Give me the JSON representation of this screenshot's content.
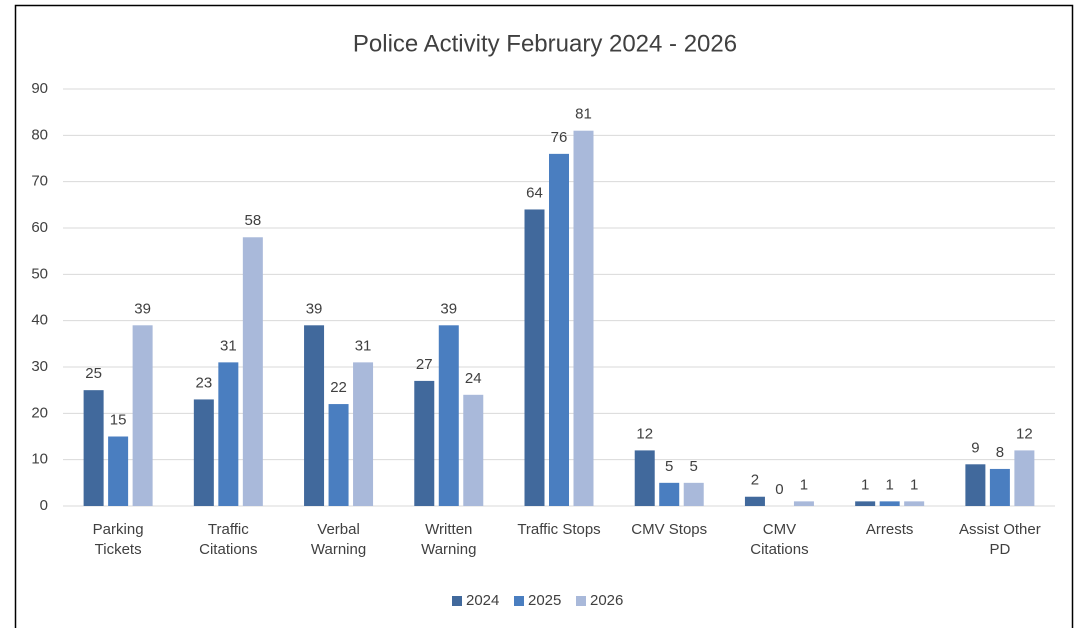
{
  "chart_data": {
    "type": "bar",
    "title": "Police Activity February 2024 - 2026",
    "categories": [
      "Parking Tickets",
      "Traffic Citations",
      "Verbal Warning",
      "Written Warning",
      "Traffic Stops",
      "CMV Stops",
      "CMV Citations",
      "Arrests",
      "Assist Other PD"
    ],
    "series": [
      {
        "name": "2024",
        "color": "#41699c",
        "values": [
          25,
          23,
          39,
          27,
          64,
          12,
          2,
          1,
          9
        ]
      },
      {
        "name": "2025",
        "color": "#4a7ec0",
        "values": [
          15,
          31,
          22,
          39,
          76,
          5,
          0,
          1,
          8
        ]
      },
      {
        "name": "2026",
        "color": "#a9b9da",
        "values": [
          39,
          58,
          31,
          24,
          81,
          5,
          1,
          1,
          12
        ]
      }
    ],
    "ylim": [
      0,
      90
    ],
    "yticks": [
      0,
      10,
      20,
      30,
      40,
      50,
      60,
      70,
      80,
      90
    ],
    "grid": true,
    "legend": "bottom"
  }
}
